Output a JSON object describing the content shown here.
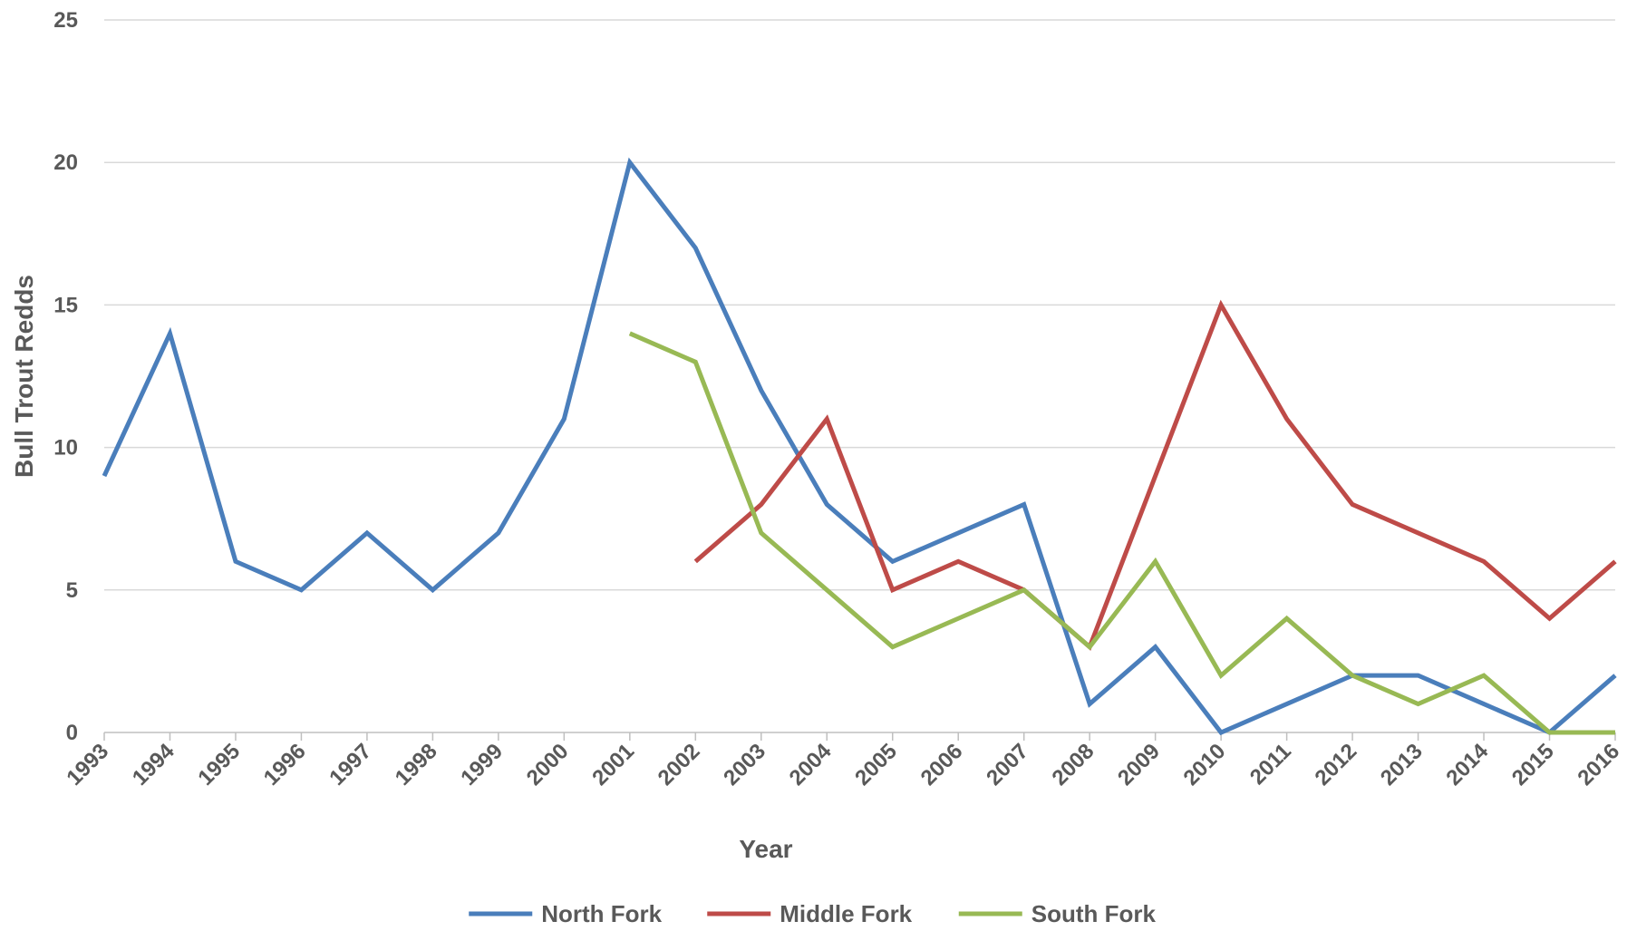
{
  "chart_data": {
    "type": "line",
    "title": "",
    "xlabel": "Year",
    "ylabel": "Bull Trout Redds",
    "categories": [
      "1993",
      "1994",
      "1995",
      "1996",
      "1997",
      "1998",
      "1999",
      "2000",
      "2001",
      "2002",
      "2003",
      "2004",
      "2005",
      "2006",
      "2007",
      "2008",
      "2009",
      "2010",
      "2011",
      "2012",
      "2013",
      "2014",
      "2015",
      "2016"
    ],
    "ylim": [
      0,
      25
    ],
    "yticks": [
      0,
      5,
      10,
      15,
      20,
      25
    ],
    "grid": true,
    "legend_position": "bottom",
    "series": [
      {
        "name": "North Fork",
        "color": "#4a7ebb",
        "values": [
          9,
          14,
          6,
          5,
          7,
          5,
          7,
          11,
          20,
          17,
          12,
          8,
          6,
          7,
          8,
          1,
          3,
          0,
          1,
          2,
          2,
          1,
          0,
          2
        ]
      },
      {
        "name": "Middle Fork",
        "color": "#be4b48",
        "values": [
          null,
          null,
          null,
          null,
          null,
          null,
          null,
          null,
          null,
          6,
          8,
          11,
          5,
          6,
          5,
          3,
          9,
          15,
          11,
          8,
          7,
          6,
          4,
          6
        ]
      },
      {
        "name": "South Fork",
        "color": "#98b954",
        "values": [
          null,
          null,
          null,
          null,
          null,
          null,
          null,
          null,
          14,
          13,
          7,
          5,
          3,
          4,
          5,
          3,
          6,
          2,
          4,
          2,
          1,
          2,
          0,
          0
        ]
      }
    ]
  }
}
